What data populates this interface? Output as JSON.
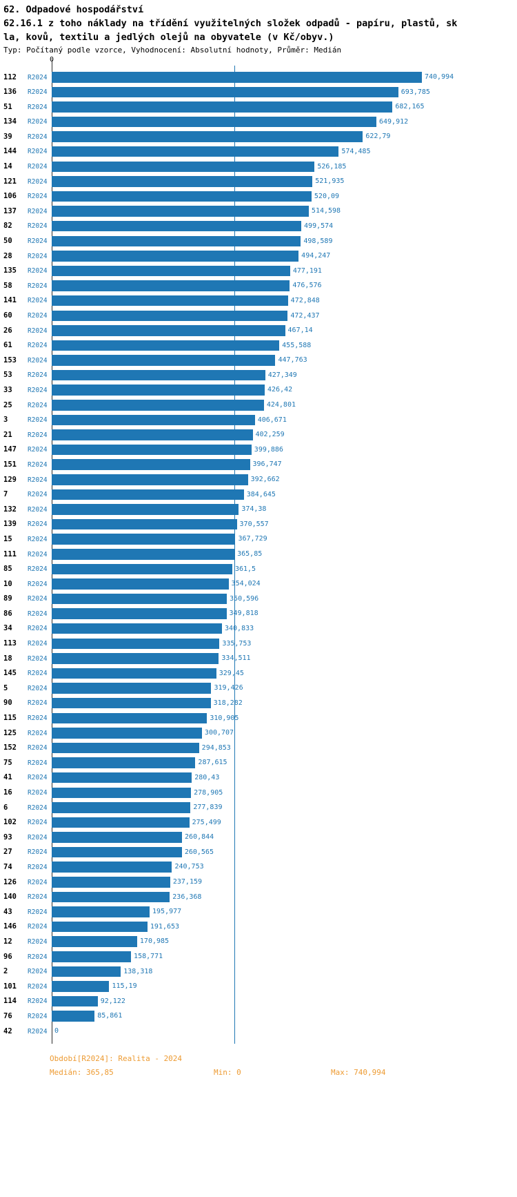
{
  "title": {
    "line1": "62. Odpadové hospodářství",
    "line2": "62.16.1 z toho náklady na třídění využitelných složek odpadů - papíru, plastů, sk",
    "line3": "la, kovů, textilu a jedlých olejů na obyvatele (v Kč/obyv.)",
    "meta": "Typ: Počítaný podle vzorce, Vyhodnocení: Absolutní hodnoty, Průměr: Medián"
  },
  "axis": {
    "origin_label": "0"
  },
  "colors": {
    "bar": "#1f77b4",
    "value_label": "#1f77b4",
    "series_label": "#1f77b4",
    "median_line": "#1f77b4",
    "row_label": "#000000",
    "footer_text": "#ed9b33"
  },
  "footer": {
    "period": "Období[R2024]: Realita - 2024",
    "median": "Medián: 365,85",
    "min": "Min: 0",
    "max": "Max: 740,994"
  },
  "chart_data": {
    "type": "bar",
    "orientation": "horizontal",
    "title": "62.16.1 z toho náklady na třídění využitelných složek odpadů - papíru, plastů, skla, kovů, textilu a jedlých olejů na obyvatele (v Kč/obyv.)",
    "xlabel": "",
    "ylabel": "",
    "unit": "Kč/obyv.",
    "x_min": 0,
    "x_max": 740.994,
    "median": 365.85,
    "min": 0,
    "max": 740.994,
    "grid": false,
    "legend": false,
    "series_name": "R2024",
    "value_format": "decimal-comma",
    "categories": [
      "112",
      "136",
      "51",
      "134",
      "39",
      "144",
      "14",
      "121",
      "106",
      "137",
      "82",
      "50",
      "28",
      "135",
      "58",
      "141",
      "60",
      "26",
      "61",
      "153",
      "53",
      "33",
      "25",
      "3",
      "21",
      "147",
      "151",
      "129",
      "7",
      "132",
      "139",
      "15",
      "111",
      "85",
      "10",
      "89",
      "86",
      "34",
      "113",
      "18",
      "145",
      "5",
      "90",
      "115",
      "125",
      "152",
      "75",
      "41",
      "16",
      "6",
      "102",
      "93",
      "27",
      "74",
      "126",
      "140",
      "43",
      "146",
      "12",
      "96",
      "2",
      "101",
      "114",
      "76",
      "42"
    ],
    "values": [
      740.994,
      693.785,
      682.165,
      649.912,
      622.79,
      574.485,
      526.185,
      521.935,
      520.09,
      514.598,
      499.574,
      498.589,
      494.247,
      477.191,
      476.576,
      472.848,
      472.437,
      467.14,
      455.588,
      447.763,
      427.349,
      426.42,
      424.801,
      406.671,
      402.259,
      399.886,
      396.747,
      392.662,
      384.645,
      374.38,
      370.557,
      367.729,
      365.85,
      361.5,
      354.024,
      350.596,
      349.818,
      340.833,
      335.753,
      334.511,
      329.45,
      319.426,
      318.282,
      310.905,
      300.707,
      294.853,
      287.615,
      280.43,
      278.905,
      277.839,
      275.499,
      260.844,
      260.565,
      240.753,
      237.159,
      236.368,
      195.977,
      191.653,
      170.985,
      158.771,
      138.318,
      115.19,
      92.122,
      85.861,
      0
    ],
    "value_labels": [
      "740,994",
      "693,785",
      "682,165",
      "649,912",
      "622,79",
      "574,485",
      "526,185",
      "521,935",
      "520,09",
      "514,598",
      "499,574",
      "498,589",
      "494,247",
      "477,191",
      "476,576",
      "472,848",
      "472,437",
      "467,14",
      "455,588",
      "447,763",
      "427,349",
      "426,42",
      "424,801",
      "406,671",
      "402,259",
      "399,886",
      "396,747",
      "392,662",
      "384,645",
      "374,38",
      "370,557",
      "367,729",
      "365,85",
      "361,5",
      "354,024",
      "350,596",
      "349,818",
      "340,833",
      "335,753",
      "334,511",
      "329,45",
      "319,426",
      "318,282",
      "310,905",
      "300,707",
      "294,853",
      "287,615",
      "280,43",
      "278,905",
      "277,839",
      "275,499",
      "260,844",
      "260,565",
      "240,753",
      "237,159",
      "236,368",
      "195,977",
      "191,653",
      "170,985",
      "158,771",
      "138,318",
      "115,19",
      "92,122",
      "85,861",
      "0"
    ]
  }
}
